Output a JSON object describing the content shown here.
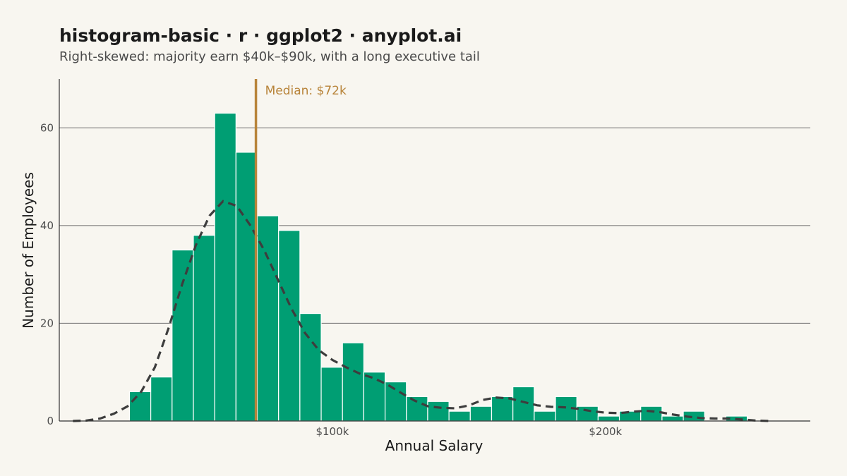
{
  "title": "histogram-basic · r · ggplot2 · anyplot.ai",
  "subtitle": "Right-skewed: majority earn $40k–$90k, with a long executive tail",
  "chart_data": {
    "type": "histogram",
    "title": "histogram-basic · r · ggplot2 · anyplot.ai",
    "subtitle": "Right-skewed: majority earn $40k–$90k, with a long executive tail",
    "xlabel": "Annual Salary",
    "ylabel": "Number of Employees",
    "xlim": [
      0,
      275000
    ],
    "ylim": [
      0,
      70
    ],
    "x_ticks": [
      100000,
      200000
    ],
    "x_tick_labels": [
      "$100k",
      "$200k"
    ],
    "y_ticks": [
      0,
      20,
      40,
      60
    ],
    "y_tick_labels": [
      "0",
      "20",
      "40",
      "60"
    ],
    "grid": "horizontal major",
    "bar_color": "#009e73",
    "bar_outline": "#ffffff",
    "bin_width": 7800,
    "bins": [
      {
        "start": 25700,
        "count": 6
      },
      {
        "start": 33500,
        "count": 9
      },
      {
        "start": 41300,
        "count": 35
      },
      {
        "start": 49100,
        "count": 38
      },
      {
        "start": 56900,
        "count": 63
      },
      {
        "start": 64700,
        "count": 55
      },
      {
        "start": 72500,
        "count": 42
      },
      {
        "start": 80300,
        "count": 39
      },
      {
        "start": 88100,
        "count": 22
      },
      {
        "start": 95900,
        "count": 11
      },
      {
        "start": 103700,
        "count": 16
      },
      {
        "start": 111500,
        "count": 10
      },
      {
        "start": 119300,
        "count": 8
      },
      {
        "start": 127100,
        "count": 5
      },
      {
        "start": 134900,
        "count": 4
      },
      {
        "start": 142700,
        "count": 2
      },
      {
        "start": 150500,
        "count": 3
      },
      {
        "start": 158300,
        "count": 5
      },
      {
        "start": 166100,
        "count": 7
      },
      {
        "start": 173900,
        "count": 2
      },
      {
        "start": 181700,
        "count": 5
      },
      {
        "start": 189500,
        "count": 3
      },
      {
        "start": 197300,
        "count": 1
      },
      {
        "start": 205100,
        "count": 2
      },
      {
        "start": 212900,
        "count": 3
      },
      {
        "start": 220700,
        "count": 1
      },
      {
        "start": 228500,
        "count": 2
      },
      {
        "start": 236300,
        "count": 0
      },
      {
        "start": 244100,
        "count": 1
      }
    ],
    "density_curve": {
      "style": "dashed",
      "color": "#3d3d3d",
      "points": [
        [
          5000,
          0
        ],
        [
          10000,
          0.1
        ],
        [
          15000,
          0.5
        ],
        [
          20000,
          1.5
        ],
        [
          25000,
          3
        ],
        [
          30000,
          6
        ],
        [
          35000,
          11
        ],
        [
          40000,
          19
        ],
        [
          45000,
          28
        ],
        [
          50000,
          36
        ],
        [
          55000,
          42
        ],
        [
          60000,
          45
        ],
        [
          65000,
          44
        ],
        [
          70000,
          40
        ],
        [
          75000,
          35
        ],
        [
          80000,
          29
        ],
        [
          85000,
          23
        ],
        [
          90000,
          18
        ],
        [
          95000,
          14.5
        ],
        [
          100000,
          12.5
        ],
        [
          105000,
          11
        ],
        [
          110000,
          9.7
        ],
        [
          115000,
          8.8
        ],
        [
          120000,
          7.5
        ],
        [
          125000,
          5.8
        ],
        [
          130000,
          4.2
        ],
        [
          135000,
          3
        ],
        [
          140000,
          2.7
        ],
        [
          145000,
          2.6
        ],
        [
          150000,
          3.2
        ],
        [
          155000,
          4.3
        ],
        [
          160000,
          4.8
        ],
        [
          165000,
          4.6
        ],
        [
          170000,
          3.9
        ],
        [
          175000,
          3.2
        ],
        [
          180000,
          2.9
        ],
        [
          185000,
          2.8
        ],
        [
          190000,
          2.5
        ],
        [
          195000,
          2
        ],
        [
          200000,
          1.7
        ],
        [
          205000,
          1.6
        ],
        [
          210000,
          1.9
        ],
        [
          215000,
          2.1
        ],
        [
          220000,
          1.8
        ],
        [
          225000,
          1.3
        ],
        [
          230000,
          0.9
        ],
        [
          235000,
          0.6
        ],
        [
          240000,
          0.5
        ],
        [
          245000,
          0.5
        ],
        [
          250000,
          0.3
        ],
        [
          255000,
          0.1
        ],
        [
          260000,
          0
        ]
      ]
    },
    "median": {
      "value": 72000,
      "label": "Median: $72k",
      "color": "#b8843a"
    }
  }
}
